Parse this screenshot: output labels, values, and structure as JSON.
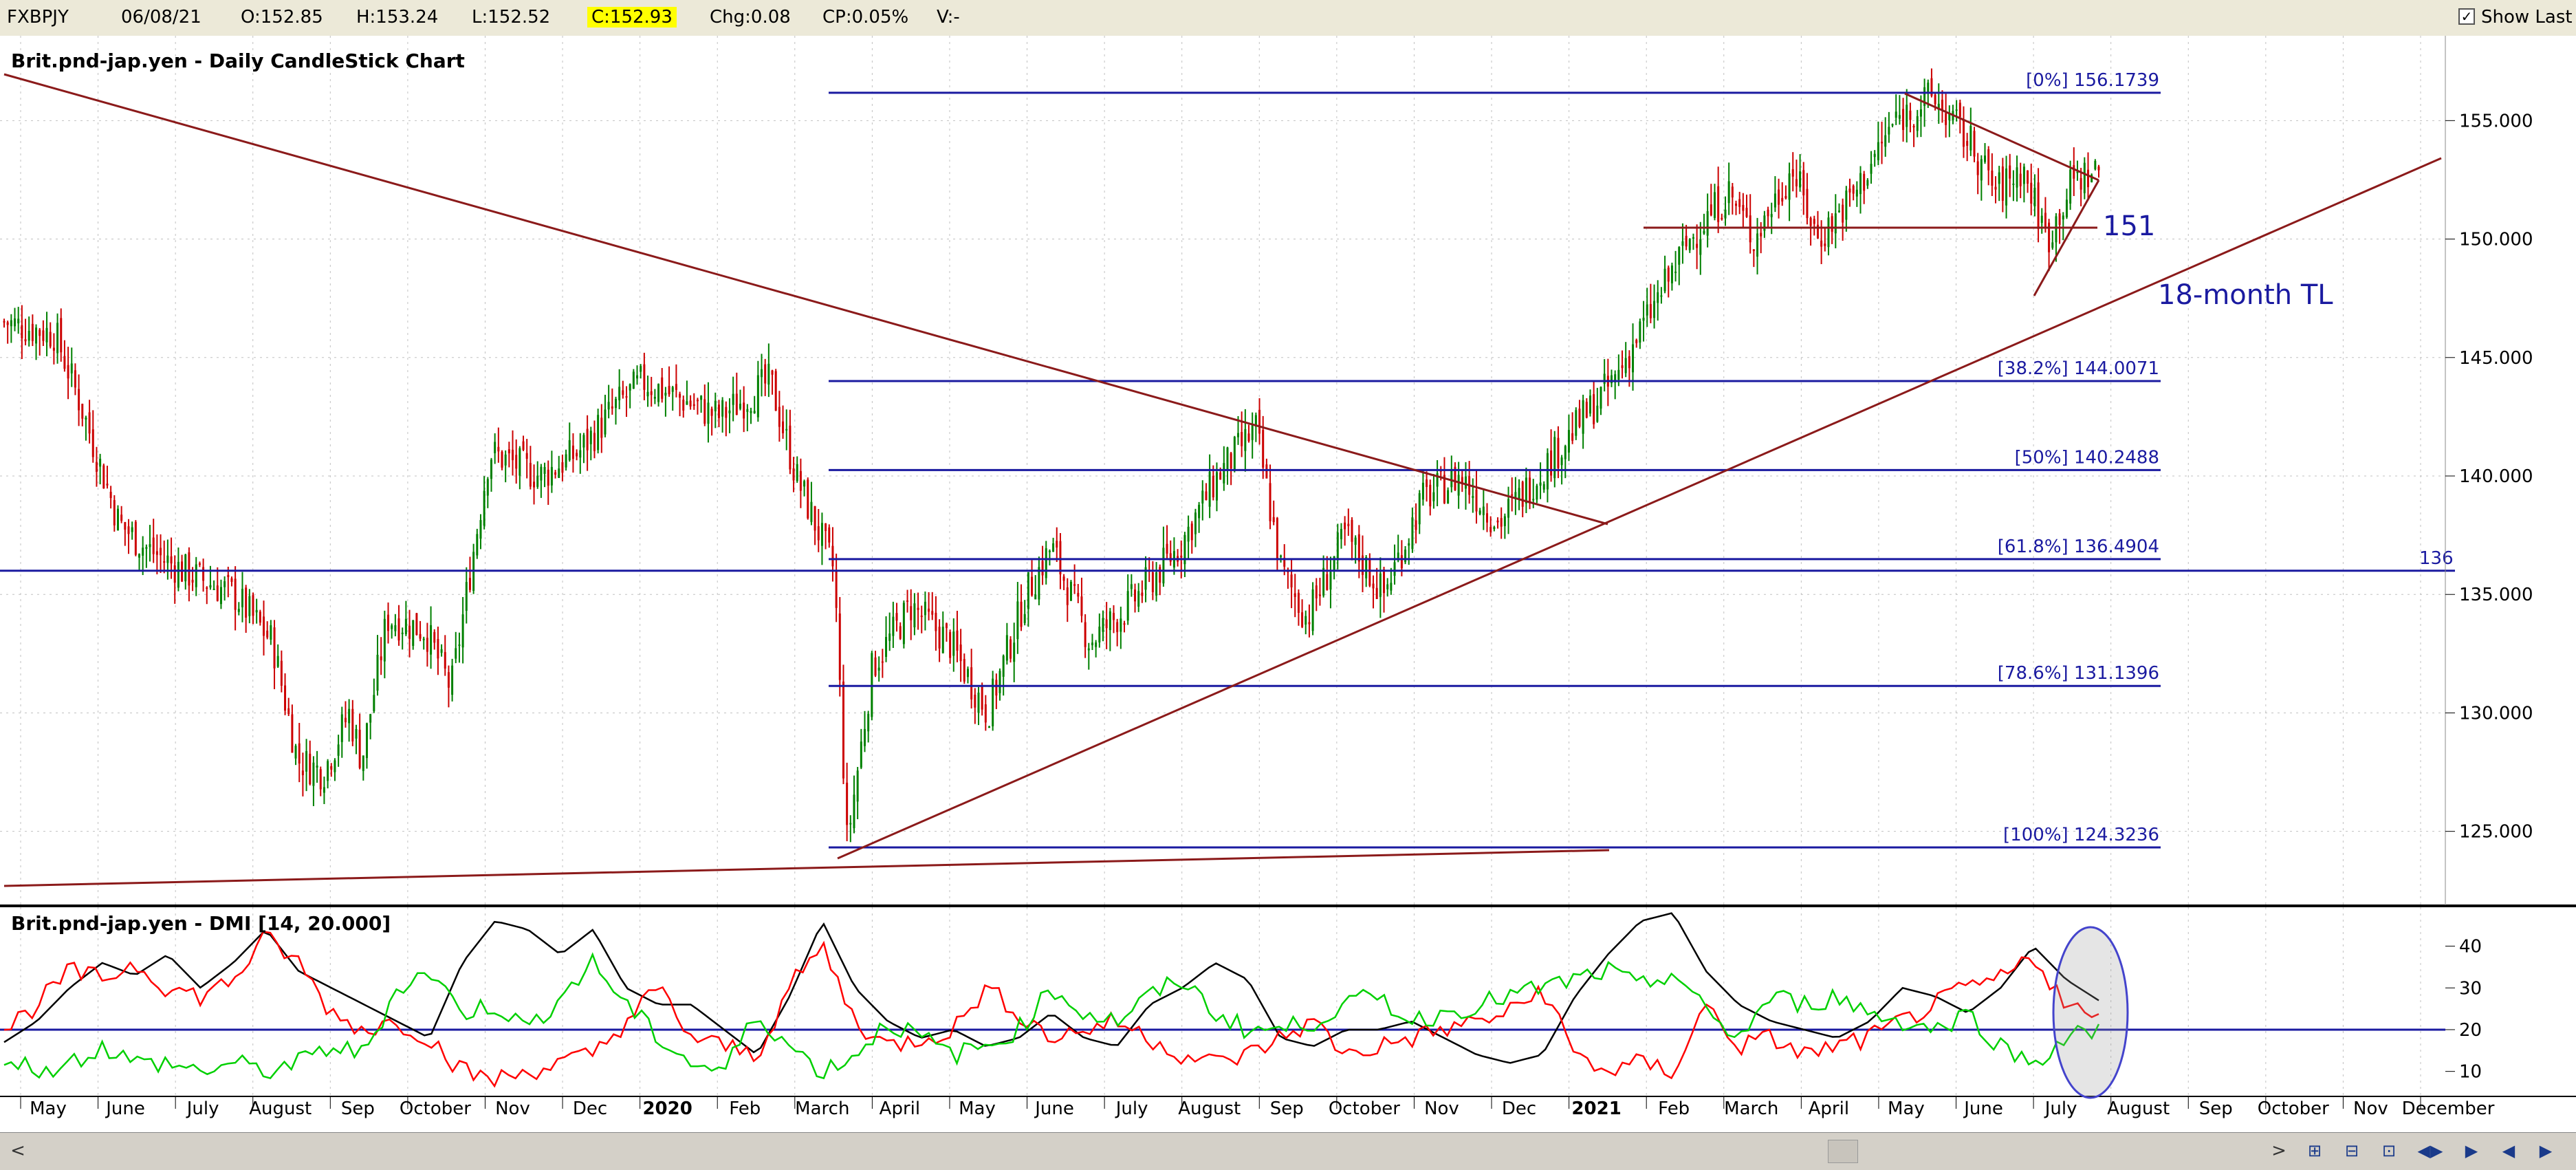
{
  "quote": {
    "symbol": "FXBPJY",
    "date": "06/08/21",
    "open": "O:152.85",
    "high": "H:153.24",
    "low": "L:152.52",
    "close": "C:152.93",
    "change": "Chg:0.08",
    "change_pct": "CP:0.05%",
    "volume": "V:-",
    "show_last_label": "Show Last",
    "show_last_checked": true
  },
  "chart_data": [
    {
      "type": "candlestick",
      "title": "Brit.pnd-jap.yen - Daily CandleStick Chart",
      "ylim": [
        122,
        158
      ],
      "yticks": [
        "155.000",
        "150.000",
        "145.000",
        "140.000",
        "135.000",
        "130.000",
        "125.000"
      ],
      "up_color": "#008000",
      "down_color": "#cc0000",
      "close_path": [
        {
          "t": 0,
          "v": 146.5
        },
        {
          "t": 0.02,
          "v": 146
        },
        {
          "t": 0.03,
          "v": 143
        },
        {
          "t": 0.045,
          "v": 138
        },
        {
          "t": 0.055,
          "v": 137
        },
        {
          "t": 0.07,
          "v": 136
        },
        {
          "t": 0.09,
          "v": 135
        },
        {
          "t": 0.105,
          "v": 133
        },
        {
          "t": 0.115,
          "v": 128
        },
        {
          "t": 0.125,
          "v": 127.5
        },
        {
          "t": 0.135,
          "v": 130
        },
        {
          "t": 0.14,
          "v": 128
        },
        {
          "t": 0.15,
          "v": 134
        },
        {
          "t": 0.165,
          "v": 133.5
        },
        {
          "t": 0.175,
          "v": 131
        },
        {
          "t": 0.19,
          "v": 141
        },
        {
          "t": 0.21,
          "v": 140
        },
        {
          "t": 0.225,
          "v": 141
        },
        {
          "t": 0.24,
          "v": 143
        },
        {
          "t": 0.25,
          "v": 144
        },
        {
          "t": 0.26,
          "v": 143.5
        },
        {
          "t": 0.28,
          "v": 142.5
        },
        {
          "t": 0.3,
          "v": 144
        },
        {
          "t": 0.31,
          "v": 140
        },
        {
          "t": 0.325,
          "v": 136
        },
        {
          "t": 0.33,
          "v": 124.5
        },
        {
          "t": 0.34,
          "v": 132
        },
        {
          "t": 0.355,
          "v": 134.5
        },
        {
          "t": 0.37,
          "v": 133
        },
        {
          "t": 0.385,
          "v": 130
        },
        {
          "t": 0.4,
          "v": 135
        },
        {
          "t": 0.41,
          "v": 137
        },
        {
          "t": 0.425,
          "v": 133
        },
        {
          "t": 0.44,
          "v": 134.5
        },
        {
          "t": 0.46,
          "v": 137
        },
        {
          "t": 0.475,
          "v": 140
        },
        {
          "t": 0.49,
          "v": 142
        },
        {
          "t": 0.5,
          "v": 136
        },
        {
          "t": 0.51,
          "v": 134
        },
        {
          "t": 0.525,
          "v": 137.5
        },
        {
          "t": 0.54,
          "v": 135
        },
        {
          "t": 0.555,
          "v": 139
        },
        {
          "t": 0.57,
          "v": 140
        },
        {
          "t": 0.585,
          "v": 138
        },
        {
          "t": 0.6,
          "v": 140
        },
        {
          "t": 0.615,
          "v": 142
        },
        {
          "t": 0.63,
          "v": 144
        },
        {
          "t": 0.645,
          "v": 147
        },
        {
          "t": 0.66,
          "v": 150
        },
        {
          "t": 0.675,
          "v": 152
        },
        {
          "t": 0.685,
          "v": 150
        },
        {
          "t": 0.7,
          "v": 153
        },
        {
          "t": 0.71,
          "v": 150
        },
        {
          "t": 0.725,
          "v": 152
        },
        {
          "t": 0.74,
          "v": 155
        },
        {
          "t": 0.755,
          "v": 156
        },
        {
          "t": 0.77,
          "v": 154
        },
        {
          "t": 0.78,
          "v": 152
        },
        {
          "t": 0.79,
          "v": 153
        },
        {
          "t": 0.8,
          "v": 150
        },
        {
          "t": 0.81,
          "v": 152.5
        },
        {
          "t": 0.82,
          "v": 152.9
        }
      ],
      "fibonacci": [
        {
          "label": "[0%] 156.1739",
          "value": 156.1739
        },
        {
          "label": "[38.2%] 144.0071",
          "value": 144.0071
        },
        {
          "label": "[50%] 140.2488",
          "value": 140.2488
        },
        {
          "label": "[61.8%] 136.4904",
          "value": 136.4904
        },
        {
          "label": "[78.6%] 131.1396",
          "value": 131.1396
        },
        {
          "label": "[100%] 124.3236",
          "value": 124.3236
        }
      ],
      "support_line": {
        "label": "136",
        "value": 136
      },
      "level_label": "151",
      "trendline_label": "18-month TL"
    },
    {
      "type": "line",
      "title": "Brit.pnd-jap.yen - DMI [14, 20.000]",
      "ylim": [
        5,
        48
      ],
      "yticks": [
        "40",
        "30",
        "20",
        "10"
      ],
      "threshold": 20,
      "series": [
        {
          "color": "#000000",
          "values": [
            17,
            22,
            30,
            36,
            33,
            38,
            30,
            36,
            44,
            34,
            30,
            26,
            22,
            18,
            36,
            46,
            44,
            38,
            44,
            30,
            26,
            26,
            20,
            14,
            28,
            46,
            30,
            22,
            18,
            20,
            16,
            18,
            24,
            18,
            16,
            26,
            30,
            36,
            32,
            18,
            16,
            20,
            20,
            22,
            18,
            14,
            12,
            14,
            28,
            38,
            46,
            48,
            34,
            26,
            22,
            20,
            18,
            22,
            30,
            28,
            24,
            30,
            40,
            32,
            27
          ]
        },
        {
          "color": "#ff0000",
          "values": [
            20,
            26,
            34,
            32,
            36,
            30,
            28,
            32,
            42,
            36,
            24,
            20,
            22,
            18,
            10,
            8,
            10,
            12,
            14,
            22,
            30,
            18,
            16,
            14,
            30,
            40,
            22,
            16,
            18,
            20,
            30,
            24,
            18,
            20,
            22,
            18,
            14,
            12,
            14,
            18,
            22,
            14,
            16,
            18,
            20,
            22,
            24,
            30,
            14,
            10,
            12,
            10,
            26,
            16,
            18,
            14,
            16,
            18,
            22,
            26,
            30,
            32,
            38,
            26,
            22
          ]
        },
        {
          "color": "#00d000",
          "values": [
            14,
            10,
            12,
            16,
            12,
            12,
            10,
            12,
            10,
            12,
            16,
            14,
            30,
            34,
            24,
            26,
            20,
            28,
            36,
            26,
            18,
            12,
            10,
            24,
            16,
            10,
            14,
            22,
            18,
            14,
            16,
            20,
            30,
            24,
            22,
            28,
            32,
            24,
            20,
            20,
            22,
            26,
            28,
            22,
            24,
            26,
            28,
            30,
            32,
            34,
            30,
            34,
            24,
            18,
            28,
            26,
            28,
            24,
            22,
            20,
            24,
            16,
            12,
            18,
            20
          ]
        }
      ]
    }
  ],
  "x_axis": {
    "months": [
      {
        "label": "May",
        "bold": false
      },
      {
        "label": "June",
        "bold": false
      },
      {
        "label": "July",
        "bold": false
      },
      {
        "label": "August",
        "bold": false
      },
      {
        "label": "Sep",
        "bold": false
      },
      {
        "label": "October",
        "bold": false
      },
      {
        "label": "Nov",
        "bold": false
      },
      {
        "label": "Dec",
        "bold": false
      },
      {
        "label": "2020",
        "bold": true
      },
      {
        "label": "Feb",
        "bold": false
      },
      {
        "label": "March",
        "bold": false
      },
      {
        "label": "April",
        "bold": false
      },
      {
        "label": "May",
        "bold": false
      },
      {
        "label": "June",
        "bold": false
      },
      {
        "label": "July",
        "bold": false
      },
      {
        "label": "August",
        "bold": false
      },
      {
        "label": "Sep",
        "bold": false
      },
      {
        "label": "October",
        "bold": false
      },
      {
        "label": "Nov",
        "bold": false
      },
      {
        "label": "Dec",
        "bold": false
      },
      {
        "label": "2021",
        "bold": true
      },
      {
        "label": "Feb",
        "bold": false
      },
      {
        "label": "March",
        "bold": false
      },
      {
        "label": "April",
        "bold": false
      },
      {
        "label": "May",
        "bold": false
      },
      {
        "label": "June",
        "bold": false
      },
      {
        "label": "July",
        "bold": false
      },
      {
        "label": "August",
        "bold": false
      },
      {
        "label": "Sep",
        "bold": false
      },
      {
        "label": "October",
        "bold": false
      },
      {
        "label": "Nov",
        "bold": false
      },
      {
        "label": "December",
        "bold": false
      }
    ]
  },
  "nav": {
    "scroll_left": "<",
    "scroll_right": ">",
    "buttons": [
      "⊞",
      "⊟",
      "⊡",
      "◀▶",
      "▶",
      "◀",
      "▶"
    ]
  }
}
